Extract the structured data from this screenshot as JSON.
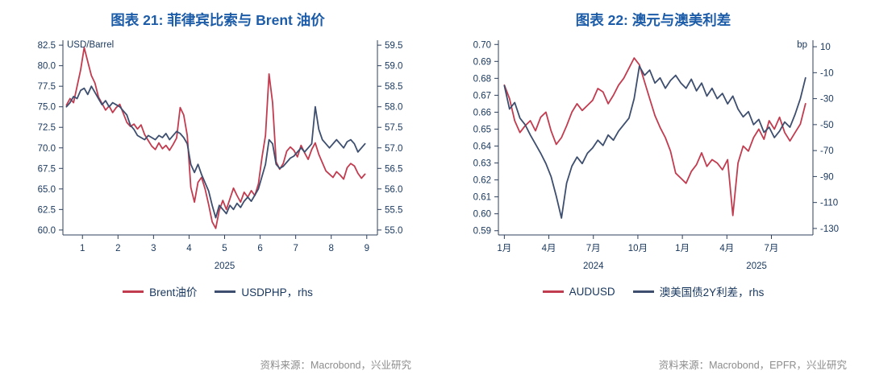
{
  "colors": {
    "title": "#1C5CA8",
    "axis_text": "#17365D",
    "axis_line": "#2E3F5C",
    "source_text": "#8C8C8C",
    "red": "#C23C50",
    "navy": "#3D4E6E"
  },
  "chart_data": [
    {
      "type": "line",
      "title": "图表 21: 菲律宾比索与 Brent 油价",
      "source": "资料来源：Macrobond，兴业研究",
      "legend_position": "bottom",
      "grid": false,
      "left_axis": {
        "unit": "USD/Barrel",
        "decimals": 1,
        "ticks": [
          82.5,
          80.0,
          77.5,
          75.0,
          72.5,
          70.0,
          67.5,
          65.0,
          62.5,
          60.0
        ],
        "range": [
          59.4,
          83.1
        ]
      },
      "right_axis": {
        "unit": "",
        "decimals": 1,
        "ticks": [
          59.5,
          59.0,
          58.5,
          58.0,
          57.5,
          57.0,
          56.5,
          56.0,
          55.5,
          55.0
        ],
        "range": [
          54.88,
          59.62
        ]
      },
      "x_axis": {
        "range": [
          0.45,
          9.3
        ],
        "ticks": [
          1,
          2,
          3,
          4,
          5,
          6,
          7,
          8,
          9
        ],
        "labels": [
          "1",
          "2",
          "3",
          "4",
          "5",
          "6",
          "7",
          "8",
          "9"
        ],
        "year_labels": [
          {
            "text": "2025",
            "x": 5
          }
        ]
      },
      "series": [
        {
          "name": "Brent油价",
          "color": "#C23C50",
          "axis": "left",
          "x_start": 0.55,
          "x_step": 0.1,
          "values": [
            75.2,
            76.0,
            75.5,
            77.5,
            79.5,
            82.2,
            80.5,
            78.8,
            77.9,
            76.2,
            75.4,
            74.6,
            75.1,
            74.3,
            74.9,
            75.3,
            74.2,
            73.1,
            72.6,
            72.9,
            72.3,
            72.8,
            71.6,
            70.9,
            70.2,
            69.8,
            70.6,
            69.9,
            70.3,
            69.7,
            70.4,
            71.2,
            74.9,
            74.0,
            71.5,
            65.2,
            63.4,
            65.8,
            66.4,
            65.0,
            63.1,
            61.0,
            60.2,
            62.4,
            63.6,
            62.5,
            63.8,
            65.1,
            64.2,
            63.4,
            64.6,
            64.0,
            64.8,
            64.2,
            65.6,
            68.8,
            71.5,
            79.0,
            75.5,
            68.3,
            67.4,
            68.1,
            69.6,
            70.1,
            69.7,
            68.9,
            70.3,
            69.4,
            68.6,
            69.8,
            70.6,
            69.2,
            68.2,
            67.2,
            66.8,
            66.4,
            67.1,
            66.7,
            66.2,
            67.6,
            68.1,
            67.8,
            66.9,
            66.3,
            66.8
          ]
        },
        {
          "name": "USDPHP，rhs",
          "color": "#3D4E6E",
          "axis": "right",
          "x_start": 0.55,
          "x_step": 0.1,
          "values": [
            58.0,
            58.1,
            58.25,
            58.2,
            58.4,
            58.45,
            58.3,
            58.5,
            58.35,
            58.2,
            58.05,
            58.15,
            58.0,
            58.1,
            58.05,
            58.0,
            57.9,
            57.8,
            57.55,
            57.45,
            57.3,
            57.25,
            57.2,
            57.3,
            57.25,
            57.2,
            57.3,
            57.25,
            57.35,
            57.2,
            57.3,
            57.4,
            57.35,
            57.25,
            57.1,
            56.6,
            56.4,
            56.6,
            56.35,
            56.15,
            55.95,
            55.6,
            55.3,
            55.6,
            55.5,
            55.4,
            55.6,
            55.5,
            55.65,
            55.55,
            55.7,
            55.8,
            55.7,
            55.85,
            56.0,
            56.3,
            56.6,
            57.2,
            57.1,
            56.6,
            56.5,
            56.55,
            56.65,
            56.75,
            56.8,
            56.9,
            57.0,
            56.9,
            57.0,
            57.1,
            58.0,
            57.45,
            57.2,
            57.1,
            57.0,
            57.1,
            57.2,
            57.1,
            57.0,
            57.15,
            57.2,
            57.1,
            56.9,
            57.0,
            57.1
          ]
        }
      ]
    },
    {
      "type": "line",
      "title": "图表 22: 澳元与澳美利差",
      "source": "资料来源：Macrobond，EPFR，兴业研究",
      "legend_position": "bottom",
      "grid": false,
      "left_axis": {
        "unit": "",
        "decimals": 2,
        "ticks": [
          0.7,
          0.69,
          0.68,
          0.67,
          0.66,
          0.65,
          0.64,
          0.63,
          0.62,
          0.61,
          0.6,
          0.59
        ],
        "range": [
          0.5875,
          0.7025
        ]
      },
      "right_axis": {
        "unit": "bp",
        "decimals": 0,
        "ticks": [
          10,
          -10,
          -30,
          -50,
          -70,
          -90,
          -110,
          -130
        ],
        "range": [
          -135,
          15
        ]
      },
      "x_axis": {
        "range": [
          -0.4,
          20.8
        ],
        "ticks": [
          0,
          3,
          6,
          9,
          12,
          15,
          18
        ],
        "labels": [
          "1月",
          "4月",
          "7月",
          "10月",
          "1月",
          "4月",
          "7月"
        ],
        "year_labels": [
          {
            "text": "2024",
            "x": 6
          },
          {
            "text": "2025",
            "x": 17
          }
        ]
      },
      "series": [
        {
          "name": "AUDUSD",
          "color": "#C23C50",
          "axis": "left",
          "x_start": 0,
          "x_step": 0.35,
          "values": [
            0.676,
            0.668,
            0.655,
            0.648,
            0.652,
            0.655,
            0.649,
            0.657,
            0.66,
            0.649,
            0.641,
            0.645,
            0.652,
            0.66,
            0.665,
            0.661,
            0.664,
            0.667,
            0.674,
            0.672,
            0.665,
            0.67,
            0.676,
            0.68,
            0.686,
            0.692,
            0.688,
            0.678,
            0.668,
            0.658,
            0.651,
            0.645,
            0.637,
            0.624,
            0.621,
            0.618,
            0.625,
            0.629,
            0.636,
            0.628,
            0.632,
            0.63,
            0.626,
            0.632,
            0.599,
            0.63,
            0.64,
            0.637,
            0.645,
            0.65,
            0.644,
            0.655,
            0.65,
            0.657,
            0.648,
            0.643,
            0.648,
            0.653,
            0.665
          ]
        },
        {
          "name": "澳美国债2Y利差，rhs",
          "color": "#3D4E6E",
          "axis": "right",
          "x_start": 0,
          "x_step": 0.35,
          "values": [
            -20,
            -38,
            -33,
            -45,
            -50,
            -58,
            -65,
            -72,
            -80,
            -90,
            -105,
            -122,
            -95,
            -82,
            -75,
            -80,
            -72,
            -68,
            -62,
            -66,
            -58,
            -62,
            -55,
            -50,
            -45,
            -30,
            -5,
            -12,
            -8,
            -18,
            -14,
            -22,
            -16,
            -12,
            -18,
            -22,
            -15,
            -24,
            -18,
            -28,
            -22,
            -30,
            -26,
            -34,
            -28,
            -38,
            -44,
            -40,
            -50,
            -46,
            -56,
            -52,
            -60,
            -55,
            -48,
            -52,
            -42,
            -30,
            -14
          ]
        }
      ]
    }
  ]
}
